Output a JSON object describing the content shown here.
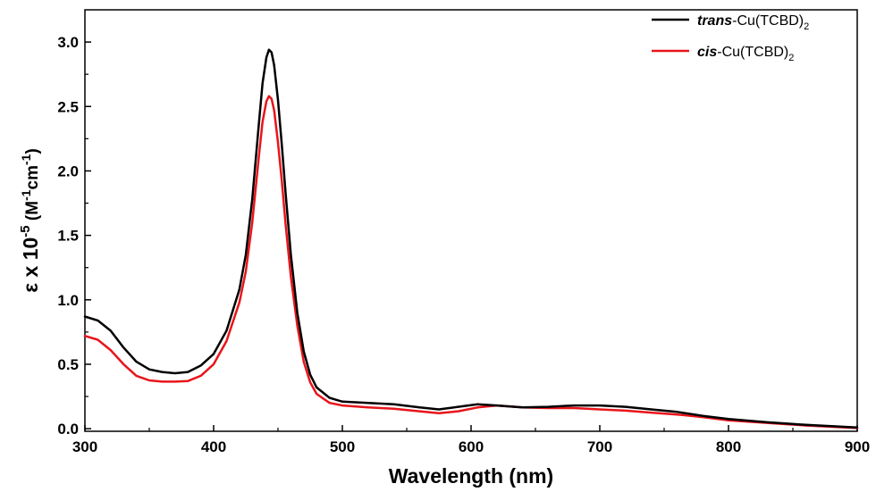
{
  "chart_data": {
    "type": "line",
    "title": "",
    "xlabel": "Wavelength (nm)",
    "ylabel": {
      "prefix": "ε x 10",
      "exp": "-5",
      "unit_open": " (M",
      "unit_exp1": "-1",
      "unit_mid": "cm",
      "unit_exp2": "-1",
      "unit_close": ")"
    },
    "xlim": [
      300,
      900
    ],
    "ylim": [
      -0.02,
      3.25
    ],
    "xticks": [
      300,
      400,
      500,
      600,
      700,
      800,
      900
    ],
    "yticks": [
      0.0,
      0.5,
      1.0,
      1.5,
      2.0,
      2.5,
      3.0
    ],
    "ytick_labels": [
      "0.0",
      "0.5",
      "1.0",
      "1.5",
      "2.0",
      "2.5",
      "3.0"
    ],
    "grid": false,
    "legend_position": "top-right",
    "series": [
      {
        "name": "trans-Cu(TCBD)2",
        "legend": {
          "italic": "trans",
          "rest": "-Cu(TCBD)",
          "sub": "2"
        },
        "color": "#000000",
        "x": [
          300,
          310,
          320,
          330,
          340,
          350,
          360,
          370,
          380,
          390,
          400,
          410,
          420,
          425,
          430,
          435,
          438,
          441,
          443,
          445,
          447,
          450,
          453,
          456,
          460,
          465,
          470,
          475,
          480,
          490,
          500,
          520,
          540,
          560,
          575,
          590,
          605,
          620,
          640,
          660,
          680,
          700,
          720,
          740,
          760,
          780,
          800,
          830,
          860,
          900
        ],
        "y": [
          0.87,
          0.84,
          0.76,
          0.63,
          0.52,
          0.46,
          0.44,
          0.43,
          0.44,
          0.49,
          0.58,
          0.76,
          1.08,
          1.35,
          1.78,
          2.35,
          2.68,
          2.88,
          2.94,
          2.92,
          2.82,
          2.55,
          2.2,
          1.82,
          1.35,
          0.9,
          0.6,
          0.42,
          0.32,
          0.24,
          0.21,
          0.2,
          0.19,
          0.165,
          0.15,
          0.17,
          0.19,
          0.18,
          0.165,
          0.17,
          0.18,
          0.18,
          0.17,
          0.15,
          0.13,
          0.1,
          0.075,
          0.05,
          0.03,
          0.01
        ]
      },
      {
        "name": "cis-Cu(TCBD)2",
        "legend": {
          "italic": "cis",
          "rest": "-Cu(TCBD)",
          "sub": "2"
        },
        "color": "#e8151b",
        "x": [
          300,
          310,
          320,
          330,
          340,
          350,
          360,
          370,
          380,
          390,
          400,
          410,
          420,
          425,
          430,
          435,
          438,
          441,
          443,
          445,
          447,
          450,
          453,
          456,
          460,
          465,
          470,
          475,
          480,
          490,
          500,
          520,
          540,
          560,
          575,
          590,
          605,
          620,
          640,
          660,
          680,
          700,
          720,
          740,
          760,
          780,
          800,
          830,
          860,
          900
        ],
        "y": [
          0.72,
          0.69,
          0.61,
          0.5,
          0.41,
          0.375,
          0.365,
          0.365,
          0.37,
          0.41,
          0.5,
          0.68,
          0.98,
          1.22,
          1.6,
          2.1,
          2.38,
          2.54,
          2.58,
          2.56,
          2.47,
          2.22,
          1.92,
          1.58,
          1.18,
          0.8,
          0.52,
          0.36,
          0.27,
          0.2,
          0.18,
          0.165,
          0.155,
          0.135,
          0.12,
          0.135,
          0.165,
          0.18,
          0.165,
          0.16,
          0.16,
          0.15,
          0.14,
          0.125,
          0.11,
          0.09,
          0.065,
          0.045,
          0.025,
          0.005
        ]
      }
    ]
  }
}
